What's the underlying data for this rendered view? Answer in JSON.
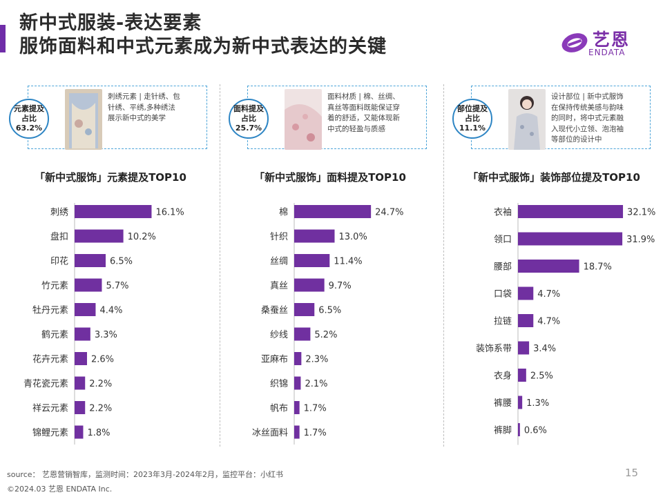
{
  "title": {
    "line1": "新中式服装-表达要素",
    "line2": "服饰面料和中式元素成为新中式表达的关键"
  },
  "logo": {
    "cn": "艺恩",
    "en": "ENDATA"
  },
  "colors": {
    "accent": "#6f2da8",
    "bar": "#7030a0",
    "badge_border": "#2d85c4",
    "card_border": "#4aa3d8"
  },
  "panels": [
    {
      "badge": "元素提及\n占比\n63.2%",
      "description": "刺绣元素 | 走针绣、包\n针绣、平绣,多种绣法\n展示新中式的美学",
      "chart_title": "「新中式服饰」元素提及TOP10"
    },
    {
      "badge": "面料提及\n占比\n25.7%",
      "description": "面料材质 | 棉、丝绸、\n真丝等面料既能保证穿\n着的舒适，又能体现新\n中式的轻盈与质感",
      "chart_title": "「新中式服饰」面料提及TOP10"
    },
    {
      "badge": "部位提及\n占比\n11.1%",
      "description": "设计部位 | 新中式服饰\n在保持传统美感与韵味\n的同时，将中式元素融\n入现代小立领、泡泡袖\n等部位的设计中",
      "chart_title": "「新中式服饰」装饰部位提及TOP10"
    }
  ],
  "chart_data": [
    {
      "type": "bar",
      "orientation": "horizontal",
      "title": "「新中式服饰」元素提及TOP10",
      "categories": [
        "刺绣",
        "盘扣",
        "印花",
        "竹元素",
        "牡丹元素",
        "鹤元素",
        "花卉元素",
        "青花瓷元素",
        "祥云元素",
        "锦鲤元素"
      ],
      "values": [
        16.1,
        10.2,
        6.5,
        5.7,
        4.4,
        3.3,
        2.6,
        2.2,
        2.2,
        1.8
      ],
      "value_labels": [
        "16.1%",
        "10.2%",
        "6.5%",
        "5.7%",
        "4.4%",
        "3.3%",
        "2.6%",
        "2.2%",
        "2.2%",
        "1.8%"
      ],
      "unit": "%"
    },
    {
      "type": "bar",
      "orientation": "horizontal",
      "title": "「新中式服饰」面料提及TOP10",
      "categories": [
        "棉",
        "针织",
        "丝绸",
        "真丝",
        "桑蚕丝",
        "纱线",
        "亚麻布",
        "织锦",
        "帆布",
        "冰丝面料"
      ],
      "values": [
        24.7,
        13.0,
        11.4,
        9.7,
        6.5,
        5.2,
        2.3,
        2.1,
        1.7,
        1.7
      ],
      "value_labels": [
        "24.7%",
        "13.0%",
        "11.4%",
        "9.7%",
        "6.5%",
        "5.2%",
        "2.3%",
        "2.1%",
        "1.7%",
        "1.7%"
      ],
      "unit": "%"
    },
    {
      "type": "bar",
      "orientation": "horizontal",
      "title": "「新中式服饰」装饰部位提及TOP10",
      "categories": [
        "衣袖",
        "领口",
        "腰部",
        "口袋",
        "拉链",
        "装饰系带",
        "衣身",
        "裤腰",
        "裤脚"
      ],
      "values": [
        32.1,
        31.9,
        18.7,
        4.7,
        4.7,
        3.4,
        2.5,
        1.3,
        0.6
      ],
      "value_labels": [
        "32.1%",
        "31.9%",
        "18.7%",
        "4.7%",
        "4.7%",
        "3.4%",
        "2.5%",
        "1.3%",
        "0.6%"
      ],
      "unit": "%"
    }
  ],
  "footer": {
    "source": "source：  艺恩营销智库，监测时间：2023年3月-2024年2月，监控平台：小红书",
    "copyright": "©2024.03  艺恩 ENDATA Inc.",
    "page_number": "15"
  }
}
